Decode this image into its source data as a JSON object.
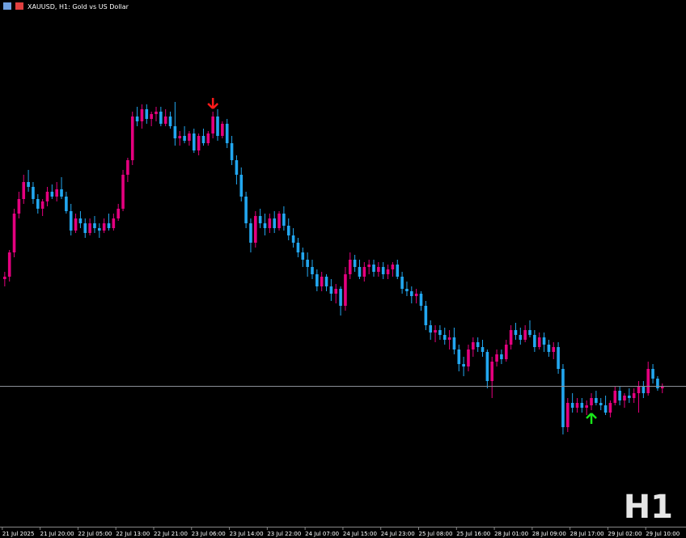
{
  "chart_data": {
    "type": "candlestick",
    "title": "XAUUSD, H1:  Gold vs US Dollar",
    "watermark": "H1",
    "bull_color": "#e5007f",
    "bear_color": "#22a7f0",
    "ylim": [
      3263,
      3475
    ],
    "xlim": [
      -1,
      144
    ],
    "xticks": [
      {
        "value": 0,
        "label": "21 Jul 2025"
      },
      {
        "value": 8,
        "label": "21 Jul 20:00"
      },
      {
        "value": 16,
        "label": "22 Jul 05:00"
      },
      {
        "value": 24,
        "label": "22 Jul 13:00"
      },
      {
        "value": 32,
        "label": "22 Jul 21:00"
      },
      {
        "value": 40,
        "label": "23 Jul 06:00"
      },
      {
        "value": 48,
        "label": "23 Jul 14:00"
      },
      {
        "value": 56,
        "label": "23 Jul 22:00"
      },
      {
        "value": 64,
        "label": "24 Jul 07:00"
      },
      {
        "value": 72,
        "label": "24 Jul 15:00"
      },
      {
        "value": 80,
        "label": "24 Jul 23:00"
      },
      {
        "value": 88,
        "label": "25 Jul 08:00"
      },
      {
        "value": 96,
        "label": "25 Jul 16:00"
      },
      {
        "value": 104,
        "label": "28 Jul 01:00"
      },
      {
        "value": 112,
        "label": "28 Jul 09:00"
      },
      {
        "value": 120,
        "label": "28 Jul 17:00"
      },
      {
        "value": 128,
        "label": "29 Jul 02:00"
      },
      {
        "value": 136,
        "label": "29 Jul 10:00"
      }
    ],
    "arrows": [
      {
        "index": 44,
        "direction": "down",
        "color": "#ff1a1a"
      },
      {
        "index": 124,
        "direction": "up",
        "color": "#19e619"
      }
    ],
    "ohlc": [
      [
        3365,
        3368,
        3362,
        3366
      ],
      [
        3366,
        3377,
        3364,
        3376
      ],
      [
        3376,
        3394,
        3374,
        3392
      ],
      [
        3392,
        3401,
        3390,
        3398
      ],
      [
        3398,
        3408,
        3396,
        3405
      ],
      [
        3405,
        3410,
        3401,
        3403
      ],
      [
        3403,
        3405,
        3396,
        3398
      ],
      [
        3398,
        3400,
        3392,
        3394
      ],
      [
        3394,
        3398,
        3391,
        3397
      ],
      [
        3397,
        3403,
        3395,
        3401
      ],
      [
        3401,
        3404,
        3398,
        3399
      ],
      [
        3399,
        3405,
        3397,
        3402
      ],
      [
        3402,
        3407,
        3398,
        3399
      ],
      [
        3399,
        3401,
        3392,
        3393
      ],
      [
        3393,
        3396,
        3383,
        3385
      ],
      [
        3385,
        3392,
        3384,
        3390
      ],
      [
        3390,
        3393,
        3386,
        3388
      ],
      [
        3388,
        3390,
        3382,
        3384
      ],
      [
        3384,
        3390,
        3383,
        3388
      ],
      [
        3388,
        3391,
        3384,
        3386
      ],
      [
        3386,
        3388,
        3382,
        3385
      ],
      [
        3385,
        3390,
        3384,
        3388
      ],
      [
        3388,
        3392,
        3385,
        3386
      ],
      [
        3386,
        3392,
        3385,
        3390
      ],
      [
        3390,
        3396,
        3389,
        3394
      ],
      [
        3394,
        3410,
        3393,
        3408
      ],
      [
        3408,
        3415,
        3405,
        3414
      ],
      [
        3414,
        3434,
        3412,
        3432
      ],
      [
        3432,
        3436,
        3428,
        3430
      ],
      [
        3430,
        3437,
        3427,
        3435
      ],
      [
        3435,
        3437,
        3429,
        3431
      ],
      [
        3431,
        3434,
        3428,
        3433
      ],
      [
        3433,
        3436,
        3430,
        3434
      ],
      [
        3434,
        3436,
        3428,
        3429
      ],
      [
        3429,
        3435,
        3428,
        3432
      ],
      [
        3432,
        3434,
        3427,
        3428
      ],
      [
        3428,
        3438,
        3420,
        3423
      ],
      [
        3423,
        3426,
        3420,
        3424
      ],
      [
        3424,
        3428,
        3421,
        3422
      ],
      [
        3422,
        3426,
        3420,
        3425
      ],
      [
        3425,
        3427,
        3417,
        3418
      ],
      [
        3418,
        3425,
        3416,
        3424
      ],
      [
        3424,
        3427,
        3420,
        3421
      ],
      [
        3421,
        3426,
        3420,
        3425
      ],
      [
        3425,
        3434,
        3423,
        3432
      ],
      [
        3432,
        3435,
        3422,
        3424
      ],
      [
        3424,
        3430,
        3423,
        3429
      ],
      [
        3429,
        3431,
        3419,
        3421
      ],
      [
        3421,
        3424,
        3412,
        3414
      ],
      [
        3414,
        3416,
        3404,
        3408
      ],
      [
        3408,
        3411,
        3397,
        3399
      ],
      [
        3399,
        3401,
        3386,
        3388
      ],
      [
        3388,
        3390,
        3376,
        3380
      ],
      [
        3380,
        3393,
        3378,
        3391
      ],
      [
        3391,
        3394,
        3386,
        3388
      ],
      [
        3388,
        3392,
        3383,
        3386
      ],
      [
        3386,
        3392,
        3384,
        3390
      ],
      [
        3390,
        3393,
        3384,
        3386
      ],
      [
        3386,
        3393,
        3385,
        3392
      ],
      [
        3392,
        3395,
        3385,
        3387
      ],
      [
        3387,
        3390,
        3381,
        3383
      ],
      [
        3383,
        3386,
        3378,
        3380
      ],
      [
        3380,
        3382,
        3374,
        3376
      ],
      [
        3376,
        3378,
        3370,
        3373
      ],
      [
        3373,
        3376,
        3366,
        3370
      ],
      [
        3370,
        3373,
        3365,
        3367
      ],
      [
        3367,
        3369,
        3360,
        3362
      ],
      [
        3362,
        3368,
        3360,
        3366
      ],
      [
        3366,
        3367,
        3360,
        3362
      ],
      [
        3362,
        3365,
        3356,
        3359
      ],
      [
        3359,
        3363,
        3355,
        3361
      ],
      [
        3361,
        3362,
        3350,
        3354
      ],
      [
        3354,
        3370,
        3352,
        3367
      ],
      [
        3367,
        3376,
        3365,
        3373
      ],
      [
        3373,
        3375,
        3368,
        3370
      ],
      [
        3370,
        3373,
        3365,
        3366
      ],
      [
        3366,
        3372,
        3364,
        3370
      ],
      [
        3370,
        3373,
        3367,
        3371
      ],
      [
        3371,
        3373,
        3366,
        3368
      ],
      [
        3368,
        3372,
        3366,
        3370
      ],
      [
        3370,
        3372,
        3365,
        3367
      ],
      [
        3367,
        3371,
        3365,
        3369
      ],
      [
        3369,
        3372,
        3366,
        3371
      ],
      [
        3371,
        3373,
        3365,
        3366
      ],
      [
        3366,
        3368,
        3359,
        3361
      ],
      [
        3361,
        3364,
        3358,
        3360
      ],
      [
        3360,
        3362,
        3355,
        3358
      ],
      [
        3358,
        3361,
        3355,
        3359
      ],
      [
        3359,
        3360,
        3352,
        3354
      ],
      [
        3354,
        3356,
        3344,
        3346
      ],
      [
        3346,
        3348,
        3340,
        3343
      ],
      [
        3343,
        3346,
        3339,
        3344
      ],
      [
        3344,
        3346,
        3340,
        3342
      ],
      [
        3342,
        3345,
        3338,
        3340
      ],
      [
        3340,
        3344,
        3336,
        3341
      ],
      [
        3341,
        3345,
        3334,
        3336
      ],
      [
        3336,
        3338,
        3327,
        3330
      ],
      [
        3330,
        3333,
        3325,
        3329
      ],
      [
        3329,
        3338,
        3327,
        3336
      ],
      [
        3336,
        3341,
        3333,
        3339
      ],
      [
        3339,
        3341,
        3335,
        3337
      ],
      [
        3337,
        3340,
        3333,
        3335
      ],
      [
        3335,
        3336,
        3320,
        3323
      ],
      [
        3323,
        3333,
        3316,
        3331
      ],
      [
        3331,
        3336,
        3329,
        3334
      ],
      [
        3334,
        3336,
        3330,
        3332
      ],
      [
        3332,
        3340,
        3331,
        3338
      ],
      [
        3338,
        3346,
        3336,
        3344
      ],
      [
        3344,
        3347,
        3340,
        3342
      ],
      [
        3342,
        3345,
        3338,
        3340
      ],
      [
        3340,
        3346,
        3339,
        3344
      ],
      [
        3344,
        3348,
        3341,
        3342
      ],
      [
        3342,
        3344,
        3335,
        3337
      ],
      [
        3337,
        3343,
        3336,
        3341
      ],
      [
        3341,
        3343,
        3335,
        3338
      ],
      [
        3338,
        3340,
        3333,
        3335
      ],
      [
        3335,
        3339,
        3332,
        3337
      ],
      [
        3337,
        3339,
        3326,
        3328
      ],
      [
        3328,
        3330,
        3301,
        3304
      ],
      [
        3304,
        3316,
        3302,
        3314
      ],
      [
        3314,
        3318,
        3310,
        3312
      ],
      [
        3312,
        3316,
        3310,
        3314
      ],
      [
        3314,
        3316,
        3310,
        3312
      ],
      [
        3312,
        3315,
        3309,
        3313
      ],
      [
        3313,
        3318,
        3311,
        3316
      ],
      [
        3316,
        3319,
        3313,
        3314
      ],
      [
        3314,
        3316,
        3311,
        3313
      ],
      [
        3313,
        3317,
        3309,
        3310
      ],
      [
        3310,
        3315,
        3308,
        3314
      ],
      [
        3314,
        3321,
        3313,
        3319
      ],
      [
        3319,
        3321,
        3313,
        3315
      ],
      [
        3315,
        3318,
        3312,
        3317
      ],
      [
        3317,
        3320,
        3314,
        3316
      ],
      [
        3316,
        3320,
        3314,
        3318
      ],
      [
        3318,
        3323,
        3310,
        3321
      ],
      [
        3321,
        3323,
        3316,
        3318
      ],
      [
        3318,
        3331,
        3317,
        3328
      ],
      [
        3328,
        3330,
        3322,
        3324
      ],
      [
        3324,
        3325,
        3319,
        3320
      ],
      [
        3320,
        3322,
        3318,
        3321
      ]
    ]
  }
}
